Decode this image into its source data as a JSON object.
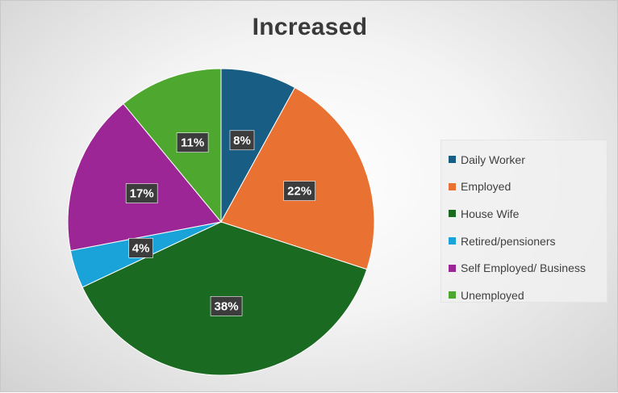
{
  "chart_data": {
    "type": "pie",
    "title": "Increased",
    "categories": [
      "Daily Worker",
      "Employed",
      "House Wife",
      "Retired/pensioners",
      "Self Employed/ Business",
      "Unemployed"
    ],
    "values": [
      8,
      22,
      38,
      4,
      17,
      11
    ],
    "data_labels": [
      "8%",
      "22%",
      "38%",
      "4%",
      "17%",
      "11%"
    ],
    "colors": [
      "#185d84",
      "#e97131",
      "#1a6a22",
      "#1aa3d8",
      "#9d2696",
      "#4ea72e"
    ],
    "legend_position": "right",
    "start_angle": "12 o'clock",
    "direction": "clockwise"
  }
}
